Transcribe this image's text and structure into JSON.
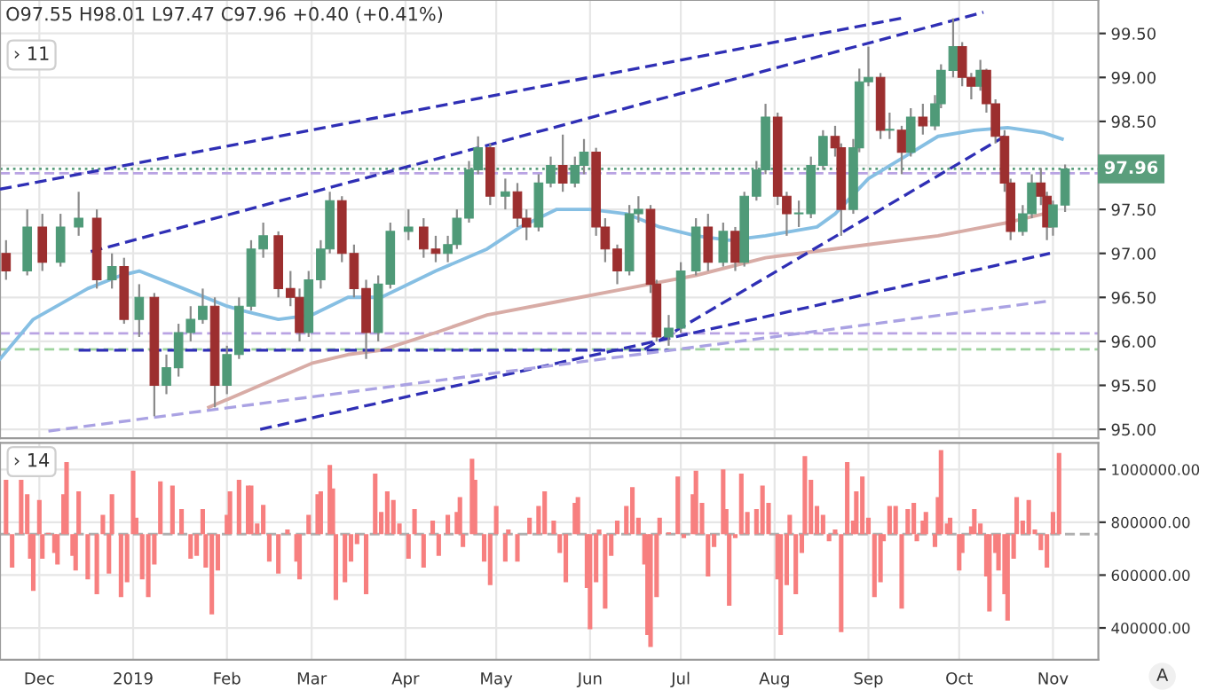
{
  "chart_data": [
    {
      "type": "candlestick",
      "annotations": [
        "O97.55 H98.01 L97.47 C97.96 +0.40 (+0.41%)",
        "› 11"
      ],
      "x": [
        "2018-11-20",
        "2018-11-27",
        "2018-12-02",
        "2018-12-08",
        "2018-12-14",
        "2018-12-20",
        "2018-12-25",
        "2018-12-29",
        "2019-01-03",
        "2019-01-08",
        "2019-01-12",
        "2019-01-16",
        "2019-01-20",
        "2019-01-24",
        "2019-01-28",
        "2019-02-01",
        "2019-02-05",
        "2019-02-09",
        "2019-02-13",
        "2019-02-18",
        "2019-02-22",
        "2019-02-25",
        "2019-02-28",
        "2019-03-04",
        "2019-03-07",
        "2019-03-11",
        "2019-03-15",
        "2019-03-19",
        "2019-03-23",
        "2019-03-27",
        "2019-04-02",
        "2019-04-07",
        "2019-04-11",
        "2019-04-15",
        "2019-04-18",
        "2019-04-22",
        "2019-04-25",
        "2019-04-29",
        "2019-05-04",
        "2019-05-08",
        "2019-05-11",
        "2019-05-15",
        "2019-05-19",
        "2019-05-23",
        "2019-05-27",
        "2019-05-30",
        "2019-06-03",
        "2019-06-06",
        "2019-06-10",
        "2019-06-14",
        "2019-06-17",
        "2019-06-21",
        "2019-06-23",
        "2019-06-27",
        "2019-07-01",
        "2019-07-06",
        "2019-07-10",
        "2019-07-15",
        "2019-07-19",
        "2019-07-22",
        "2019-07-26",
        "2019-07-29",
        "2019-08-02",
        "2019-08-05",
        "2019-08-09",
        "2019-08-13",
        "2019-08-17",
        "2019-08-21",
        "2019-08-23",
        "2019-08-27",
        "2019-08-29",
        "2019-09-01",
        "2019-09-05",
        "2019-09-08",
        "2019-09-12",
        "2019-09-15",
        "2019-09-19",
        "2019-09-23",
        "2019-09-25",
        "2019-09-29",
        "2019-10-02",
        "2019-10-05",
        "2019-10-08",
        "2019-10-10",
        "2019-10-13",
        "2019-10-16",
        "2019-10-18",
        "2019-10-22",
        "2019-10-25",
        "2019-10-28",
        "2019-10-30",
        "2019-11-01",
        "2019-11-05"
      ],
      "ohlc": [
        [
          97.0,
          97.15,
          96.7,
          96.8
        ],
        [
          96.8,
          97.5,
          96.75,
          97.3
        ],
        [
          97.3,
          97.45,
          96.8,
          96.9
        ],
        [
          96.9,
          97.45,
          96.85,
          97.3
        ],
        [
          97.3,
          97.7,
          97.2,
          97.4
        ],
        [
          97.4,
          97.5,
          96.6,
          96.7
        ],
        [
          96.7,
          97.0,
          96.6,
          96.85
        ],
        [
          96.85,
          96.95,
          96.2,
          96.25
        ],
        [
          96.25,
          96.65,
          96.05,
          96.5
        ],
        [
          96.5,
          96.55,
          95.15,
          95.5
        ],
        [
          95.5,
          95.85,
          95.4,
          95.7
        ],
        [
          95.7,
          96.2,
          95.6,
          96.1
        ],
        [
          96.1,
          96.4,
          96.0,
          96.25
        ],
        [
          96.25,
          96.6,
          96.2,
          96.4
        ],
        [
          96.4,
          96.5,
          95.25,
          95.5
        ],
        [
          95.5,
          95.95,
          95.4,
          95.85
        ],
        [
          95.85,
          96.5,
          95.8,
          96.4
        ],
        [
          96.4,
          97.15,
          96.35,
          97.05
        ],
        [
          97.05,
          97.35,
          96.95,
          97.2
        ],
        [
          97.2,
          97.25,
          96.5,
          96.6
        ],
        [
          96.6,
          96.8,
          96.4,
          96.5
        ],
        [
          96.5,
          96.6,
          96.0,
          96.1
        ],
        [
          96.1,
          96.8,
          96.05,
          96.7
        ],
        [
          96.7,
          97.15,
          96.6,
          97.05
        ],
        [
          97.05,
          97.7,
          97.0,
          97.6
        ],
        [
          97.6,
          97.65,
          96.9,
          97.0
        ],
        [
          97.0,
          97.1,
          96.5,
          96.6
        ],
        [
          96.6,
          96.7,
          95.8,
          96.1
        ],
        [
          96.1,
          96.75,
          96.0,
          96.65
        ],
        [
          96.65,
          97.35,
          96.6,
          97.25
        ],
        [
          97.25,
          97.5,
          97.15,
          97.3
        ],
        [
          97.3,
          97.4,
          96.95,
          97.05
        ],
        [
          97.05,
          97.2,
          96.9,
          97.0
        ],
        [
          97.0,
          97.2,
          96.9,
          97.1
        ],
        [
          97.1,
          97.5,
          97.05,
          97.4
        ],
        [
          97.4,
          98.05,
          97.35,
          97.95
        ],
        [
          97.95,
          98.33,
          97.9,
          98.2
        ],
        [
          98.2,
          98.25,
          97.55,
          97.65
        ],
        [
          97.65,
          97.85,
          97.5,
          97.7
        ],
        [
          97.7,
          97.8,
          97.3,
          97.4
        ],
        [
          97.4,
          97.5,
          97.15,
          97.3
        ],
        [
          97.3,
          97.9,
          97.25,
          97.8
        ],
        [
          97.8,
          98.1,
          97.75,
          98.0
        ],
        [
          98.0,
          98.35,
          97.7,
          97.8
        ],
        [
          97.8,
          98.1,
          97.75,
          98.0
        ],
        [
          98.0,
          98.3,
          97.9,
          98.15
        ],
        [
          98.15,
          98.2,
          97.2,
          97.3
        ],
        [
          97.3,
          97.4,
          96.9,
          97.05
        ],
        [
          97.05,
          97.1,
          96.65,
          96.8
        ],
        [
          96.8,
          97.55,
          96.75,
          97.45
        ],
        [
          97.45,
          97.65,
          97.35,
          97.5
        ],
        [
          97.5,
          97.55,
          96.55,
          96.65
        ],
        [
          96.65,
          96.7,
          96.0,
          96.05
        ],
        [
          96.05,
          96.3,
          95.95,
          96.15
        ],
        [
          96.15,
          96.9,
          96.1,
          96.8
        ],
        [
          96.8,
          97.4,
          96.75,
          97.3
        ],
        [
          97.3,
          97.45,
          96.8,
          96.9
        ],
        [
          96.9,
          97.35,
          96.85,
          97.25
        ],
        [
          97.25,
          97.3,
          96.8,
          96.9
        ],
        [
          96.9,
          97.7,
          96.85,
          97.65
        ],
        [
          97.65,
          98.05,
          97.6,
          97.95
        ],
        [
          97.95,
          98.7,
          97.9,
          98.55
        ],
        [
          98.55,
          98.6,
          97.55,
          97.65
        ],
        [
          97.65,
          97.7,
          97.2,
          97.45
        ],
        [
          97.45,
          97.6,
          97.3,
          97.45
        ],
        [
          97.45,
          98.1,
          97.4,
          98.0
        ],
        [
          98.0,
          98.4,
          97.95,
          98.33
        ],
        [
          98.33,
          98.45,
          98.1,
          98.2
        ],
        [
          98.2,
          98.25,
          97.2,
          97.5
        ],
        [
          97.5,
          98.3,
          97.45,
          98.2
        ],
        [
          98.2,
          99.1,
          98.15,
          98.95
        ],
        [
          98.95,
          99.35,
          98.9,
          99.0
        ],
        [
          99.0,
          99.05,
          98.3,
          98.4
        ],
        [
          98.4,
          98.6,
          98.3,
          98.4
        ],
        [
          98.4,
          98.45,
          97.9,
          98.15
        ],
        [
          98.15,
          98.65,
          98.1,
          98.55
        ],
        [
          98.55,
          98.7,
          98.35,
          98.45
        ],
        [
          98.45,
          98.8,
          98.4,
          98.7
        ],
        [
          98.7,
          99.15,
          98.65,
          99.08
        ],
        [
          99.08,
          99.67,
          99.0,
          99.35
        ],
        [
          99.35,
          99.4,
          98.9,
          99.0
        ],
        [
          99.0,
          99.05,
          98.75,
          98.9
        ],
        [
          98.9,
          99.2,
          98.85,
          99.08
        ],
        [
          99.08,
          99.1,
          98.6,
          98.7
        ],
        [
          98.7,
          98.75,
          98.25,
          98.33
        ],
        [
          98.33,
          98.4,
          97.7,
          97.8
        ],
        [
          97.8,
          97.85,
          97.15,
          97.25
        ],
        [
          97.25,
          97.55,
          97.2,
          97.45
        ],
        [
          97.45,
          97.9,
          97.4,
          97.8
        ],
        [
          97.8,
          97.97,
          97.55,
          97.65
        ],
        [
          97.65,
          97.7,
          97.15,
          97.3
        ],
        [
          97.3,
          97.6,
          97.2,
          97.55
        ],
        [
          97.55,
          98.01,
          97.47,
          97.96
        ]
      ],
      "colors": [
        "#9c2f2f",
        "#4f9a78",
        "#9c2f2f",
        "#4f9a78",
        "#4f9a78",
        "#9c2f2f",
        "#4f9a78",
        "#9c2f2f",
        "#4f9a78",
        "#9c2f2f",
        "#4f9a78",
        "#4f9a78",
        "#4f9a78",
        "#4f9a78",
        "#9c2f2f",
        "#4f9a78",
        "#4f9a78",
        "#4f9a78",
        "#4f9a78",
        "#9c2f2f",
        "#9c2f2f",
        "#9c2f2f",
        "#4f9a78",
        "#4f9a78",
        "#4f9a78",
        "#9c2f2f",
        "#9c2f2f",
        "#9c2f2f",
        "#4f9a78",
        "#4f9a78",
        "#4f9a78",
        "#9c2f2f",
        "#9c2f2f",
        "#4f9a78",
        "#4f9a78",
        "#4f9a78",
        "#4f9a78",
        "#9c2f2f",
        "#4f9a78",
        "#9c2f2f",
        "#9c2f2f",
        "#4f9a78",
        "#4f9a78",
        "#9c2f2f",
        "#4f9a78",
        "#4f9a78",
        "#9c2f2f",
        "#9c2f2f",
        "#9c2f2f",
        "#4f9a78",
        "#4f9a78",
        "#9c2f2f",
        "#9c2f2f",
        "#4f9a78",
        "#4f9a78",
        "#4f9a78",
        "#9c2f2f",
        "#4f9a78",
        "#9c2f2f",
        "#4f9a78",
        "#4f9a78",
        "#4f9a78",
        "#9c2f2f",
        "#9c2f2f",
        "#4f9a78",
        "#4f9a78",
        "#4f9a78",
        "#9c2f2f",
        "#9c2f2f",
        "#4f9a78",
        "#4f9a78",
        "#4f9a78",
        "#9c2f2f",
        "#4f9a78",
        "#9c2f2f",
        "#4f9a78",
        "#9c2f2f",
        "#4f9a78",
        "#4f9a78",
        "#4f9a78",
        "#9c2f2f",
        "#9c2f2f",
        "#4f9a78",
        "#9c2f2f",
        "#9c2f2f",
        "#9c2f2f",
        "#9c2f2f",
        "#4f9a78",
        "#4f9a78",
        "#9c2f2f",
        "#9c2f2f",
        "#4f9a78",
        "#4f9a78"
      ],
      "series": [
        {
          "type": "line",
          "color": "#86bfe3",
          "x": [
            "2018-11-18",
            "2018-11-29",
            "2018-12-17",
            "2018-12-28",
            "2019-01-03",
            "2019-01-14",
            "2019-02-01",
            "2019-02-06",
            "2019-02-18",
            "2019-03-01",
            "2019-03-13",
            "2019-03-24",
            "2019-04-11",
            "2019-04-28",
            "2019-05-09",
            "2019-05-21",
            "2019-06-01",
            "2019-06-13",
            "2019-06-24",
            "2019-07-06",
            "2019-07-17",
            "2019-07-29",
            "2019-08-15",
            "2019-08-21",
            "2019-09-01",
            "2019-09-13",
            "2019-09-24",
            "2019-10-06",
            "2019-10-17",
            "2019-10-29",
            "2019-11-04"
          ],
          "values": [
            95.8,
            96.25,
            96.6,
            96.75,
            96.8,
            96.65,
            96.4,
            96.35,
            96.25,
            96.3,
            96.5,
            96.5,
            96.8,
            97.05,
            97.3,
            97.5,
            97.5,
            97.45,
            97.3,
            97.2,
            97.15,
            97.2,
            97.3,
            97.45,
            97.85,
            98.1,
            98.33,
            98.4,
            98.43,
            98.37,
            98.3
          ]
        },
        {
          "type": "line",
          "color": "#d8aca6",
          "x": [
            "2019-01-26",
            "2019-02-12",
            "2019-03-01",
            "2019-03-13",
            "2019-03-24",
            "2019-04-11",
            "2019-04-28",
            "2019-05-21",
            "2019-06-13",
            "2019-07-06",
            "2019-07-29",
            "2019-08-09",
            "2019-09-01",
            "2019-09-24",
            "2019-10-17",
            "2019-10-29"
          ],
          "values": [
            95.25,
            95.5,
            95.75,
            95.85,
            95.9,
            96.1,
            96.3,
            96.45,
            96.6,
            96.75,
            96.95,
            97.0,
            97.1,
            97.2,
            97.35,
            97.45
          ]
        },
        {
          "type": "line",
          "color": "#2f2fb5",
          "line_style": "dashed",
          "x": [
            "2018-11-18",
            "2019-09-13"
          ],
          "values": [
            97.73,
            99.68
          ]
        },
        {
          "type": "line",
          "color": "#2f2fb5",
          "line_style": "dashed",
          "x": [
            "2018-12-18",
            "2019-10-09"
          ],
          "values": [
            97.02,
            99.74
          ]
        },
        {
          "type": "line",
          "color": "#2f2fb5",
          "line_style": "dashed",
          "x": [
            "2019-02-12",
            "2019-10-31"
          ],
          "values": [
            95.0,
            97.0
          ]
        },
        {
          "type": "line",
          "color": "#2f2fb5",
          "line_style": "dashed",
          "x": [
            "2018-12-14",
            "2019-06-27"
          ],
          "values": [
            95.9,
            95.9
          ]
        },
        {
          "type": "line",
          "color": "#2f2fb5",
          "line_style": "dashed",
          "x": [
            "2019-06-19",
            "2019-10-16"
          ],
          "values": [
            95.91,
            98.33
          ]
        },
        {
          "type": "line",
          "color": "#aaa2e3",
          "line_style": "dashed",
          "x": [
            "2018-12-04",
            "2019-10-31"
          ],
          "values": [
            94.98,
            96.46
          ]
        }
      ],
      "ref_lines": [
        {
          "axis": "y",
          "value": 97.96,
          "label": "97.96",
          "color": "#5a9e7c",
          "line_style": "dotted"
        },
        {
          "axis": "y",
          "value": 97.91,
          "color": "#b9a3e3",
          "line_style": "dashed"
        },
        {
          "axis": "y",
          "value": 96.09,
          "color": "#b9a3e3",
          "line_style": "dashed"
        },
        {
          "axis": "y",
          "value": 95.91,
          "color": "#9ed49e",
          "line_style": "dashed"
        }
      ],
      "xlim": [
        "2018-11-18",
        "2019-11-16"
      ],
      "xticks": [
        {
          "value": "2018-12-01",
          "label": null
        },
        {
          "value": "2019-01-01",
          "label": null
        },
        {
          "value": "2019-02-01",
          "label": null
        },
        {
          "value": "2019-03-01",
          "label": null
        },
        {
          "value": "2019-04-01",
          "label": null
        },
        {
          "value": "2019-05-01",
          "label": null
        },
        {
          "value": "2019-06-01",
          "label": null
        },
        {
          "value": "2019-07-01",
          "label": null
        },
        {
          "value": "2019-08-01",
          "label": null
        },
        {
          "value": "2019-09-01",
          "label": null
        },
        {
          "value": "2019-10-01",
          "label": null
        },
        {
          "value": "2019-11-01",
          "label": null
        }
      ],
      "ylim": [
        94.9,
        99.88
      ],
      "yticks": [
        {
          "value": 95,
          "label": "95.00"
        },
        {
          "value": 95.5,
          "label": "95.50"
        },
        {
          "value": 96,
          "label": "96.00"
        },
        {
          "value": 96.5,
          "label": "96.50"
        },
        {
          "value": 97,
          "label": "97.00"
        },
        {
          "value": 97.5,
          "label": "97.50"
        },
        {
          "value": 98,
          "label": null
        },
        {
          "value": 98.5,
          "label": "98.50"
        },
        {
          "value": 99,
          "label": "99.00"
        },
        {
          "value": 99.5,
          "label": "99.50"
        }
      ],
      "grid": true,
      "tick_labels": "y"
    },
    {
      "type": "bar",
      "color": "#f77f7f",
      "annotations": [
        "› 14",
        "A"
      ],
      "x": [
        "2018-11-20",
        "2018-11-22",
        "2018-11-25",
        "2018-11-27",
        "2018-11-28",
        "2018-11-29",
        "2018-12-01",
        "2018-12-02",
        "2018-12-04",
        "2018-12-06",
        "2018-12-07",
        "2018-12-09",
        "2018-12-10",
        "2018-12-12",
        "2018-12-13",
        "2018-12-14",
        "2018-12-17",
        "2018-12-20",
        "2018-12-22",
        "2018-12-24",
        "2018-12-25",
        "2018-12-28",
        "2018-12-30",
        "2019-01-01",
        "2019-01-02",
        "2019-01-04",
        "2019-01-06",
        "2019-01-08",
        "2019-01-10",
        "2019-01-14",
        "2019-01-17",
        "2019-01-20",
        "2019-01-22",
        "2019-01-24",
        "2019-01-25",
        "2019-01-27",
        "2019-01-29",
        "2019-02-01",
        "2019-02-02",
        "2019-02-05",
        "2019-02-08",
        "2019-02-09",
        "2019-02-11",
        "2019-02-13",
        "2019-02-15",
        "2019-02-18",
        "2019-02-21",
        "2019-02-24",
        "2019-02-25",
        "2019-02-28",
        "2019-03-03",
        "2019-03-04",
        "2019-03-07",
        "2019-03-08",
        "2019-03-09",
        "2019-03-12",
        "2019-03-14",
        "2019-03-16",
        "2019-03-19",
        "2019-03-22",
        "2019-03-24",
        "2019-03-26",
        "2019-03-28",
        "2019-03-30",
        "2019-04-02",
        "2019-04-04",
        "2019-04-07",
        "2019-04-10",
        "2019-04-12",
        "2019-04-15",
        "2019-04-18",
        "2019-04-19",
        "2019-04-20",
        "2019-04-23",
        "2019-04-24",
        "2019-04-27",
        "2019-04-29",
        "2019-05-01",
        "2019-05-04",
        "2019-05-05",
        "2019-05-08",
        "2019-05-12",
        "2019-05-15",
        "2019-05-17",
        "2019-05-20",
        "2019-05-22",
        "2019-05-24",
        "2019-05-27",
        "2019-05-28",
        "2019-05-31",
        "2019-06-01",
        "2019-06-03",
        "2019-06-04",
        "2019-06-06",
        "2019-06-08",
        "2019-06-10",
        "2019-06-13",
        "2019-06-15",
        "2019-06-17",
        "2019-06-19",
        "2019-06-20",
        "2019-06-21",
        "2019-06-23",
        "2019-06-24",
        "2019-06-27",
        "2019-06-30",
        "2019-07-02",
        "2019-07-05",
        "2019-07-06",
        "2019-07-08",
        "2019-07-10",
        "2019-07-12",
        "2019-07-15",
        "2019-07-16",
        "2019-07-17",
        "2019-07-19",
        "2019-07-21",
        "2019-07-23",
        "2019-07-26",
        "2019-07-28",
        "2019-07-30",
        "2019-08-02",
        "2019-08-03",
        "2019-08-05",
        "2019-08-06",
        "2019-08-08",
        "2019-08-10",
        "2019-08-11",
        "2019-08-13",
        "2019-08-15",
        "2019-08-17",
        "2019-08-19",
        "2019-08-21",
        "2019-08-23",
        "2019-08-25",
        "2019-08-27",
        "2019-08-28",
        "2019-08-30",
        "2019-09-01",
        "2019-09-03",
        "2019-09-05",
        "2019-09-06",
        "2019-09-08",
        "2019-09-10",
        "2019-09-12",
        "2019-09-14",
        "2019-09-16",
        "2019-09-17",
        "2019-09-19",
        "2019-09-20",
        "2019-09-23",
        "2019-09-24",
        "2019-09-25",
        "2019-09-27",
        "2019-09-28",
        "2019-10-01",
        "2019-10-02",
        "2019-10-05",
        "2019-10-06",
        "2019-10-08",
        "2019-10-10",
        "2019-10-11",
        "2019-10-13",
        "2019-10-14",
        "2019-10-16",
        "2019-10-17",
        "2019-10-19",
        "2019-10-20",
        "2019-10-22",
        "2019-10-24",
        "2019-10-26",
        "2019-10-28",
        "2019-10-30",
        "2019-11-01",
        "2019-11-03"
      ],
      "values": [
        206000,
        -127000,
        206000,
        151000,
        -93000,
        -215000,
        129000,
        -93000,
        5000,
        -71000,
        -115000,
        151000,
        273000,
        -82000,
        -138000,
        162000,
        -171000,
        -227000,
        73000,
        -149000,
        151000,
        -238000,
        -182000,
        240000,
        62000,
        -171000,
        -238000,
        -115000,
        200000,
        184000,
        95000,
        -93000,
        -82000,
        95000,
        -127000,
        -304000,
        -138000,
        73000,
        162000,
        206000,
        184000,
        184000,
        40000,
        111000,
        -104000,
        -149000,
        18000,
        -104000,
        -171000,
        73000,
        151000,
        162000,
        262000,
        173000,
        -249000,
        -182000,
        -104000,
        -38000,
        -227000,
        229000,
        84000,
        162000,
        129000,
        40000,
        -93000,
        95000,
        -127000,
        51000,
        -82000,
        73000,
        84000,
        140000,
        -49000,
        285000,
        206000,
        -104000,
        -193000,
        107000,
        -104000,
        18000,
        -104000,
        62000,
        107000,
        162000,
        51000,
        -71000,
        -182000,
        118000,
        140000,
        -204000,
        -360000,
        -182000,
        18000,
        -282000,
        -82000,
        51000,
        107000,
        178000,
        62000,
        -115000,
        -382000,
        -427000,
        -238000,
        62000,
        7000,
        218000,
        -15000,
        151000,
        240000,
        118000,
        -160000,
        -49000,
        245000,
        95000,
        -271000,
        -15000,
        229000,
        84000,
        95000,
        184000,
        118000,
        -171000,
        -382000,
        -193000,
        73000,
        -227000,
        -71000,
        295000,
        206000,
        107000,
        73000,
        -27000,
        18000,
        -371000,
        273000,
        51000,
        162000,
        218000,
        62000,
        -238000,
        -182000,
        -27000,
        107000,
        107000,
        -282000,
        95000,
        118000,
        -27000,
        51000,
        84000,
        -49000,
        140000,
        318000,
        40000,
        62000,
        -138000,
        -71000,
        29000,
        95000,
        40000,
        -160000,
        -293000,
        -71000,
        -138000,
        -227000,
        -327000,
        -93000,
        140000,
        51000,
        129000,
        18000,
        -60000,
        -127000,
        84000,
        307000
      ],
      "base": [
        755000,
        755000,
        755000,
        755000,
        755000,
        755000,
        755000,
        755000,
        755000,
        755000,
        755000,
        755000,
        755000,
        755000,
        755000,
        755000,
        755000,
        755000,
        755000,
        755000,
        755000,
        755000,
        755000,
        755000,
        755000,
        755000,
        755000,
        755000,
        755000,
        755000,
        755000,
        755000,
        755000,
        755000,
        755000,
        755000,
        755000,
        755000,
        755000,
        755000,
        755000,
        755000,
        755000,
        755000,
        755000,
        755000,
        755000,
        755000,
        755000,
        755000,
        755000,
        755000,
        755000,
        755000,
        755000,
        755000,
        755000,
        755000,
        755000,
        755000,
        755000,
        755000,
        755000,
        755000,
        755000,
        755000,
        755000,
        755000,
        755000,
        755000,
        755000,
        755000,
        755000,
        755000,
        755000,
        755000,
        755000,
        755000,
        755000,
        755000,
        755000,
        755000,
        755000,
        755000,
        755000,
        755000,
        755000,
        755000,
        755000,
        755000,
        755000,
        755000,
        755000,
        755000,
        755000,
        755000,
        755000,
        755000,
        755000,
        755000,
        755000,
        755000,
        755000,
        755000,
        755000,
        755000,
        755000,
        755000,
        755000,
        755000,
        755000,
        755000,
        755000,
        755000,
        755000,
        755000,
        755000,
        755000,
        755000,
        755000,
        755000,
        755000,
        755000,
        755000,
        755000,
        755000,
        755000,
        755000,
        755000,
        755000,
        755000,
        755000,
        755000,
        755000,
        755000,
        755000,
        755000,
        755000,
        755000,
        755000,
        755000,
        755000,
        755000,
        755000,
        755000,
        755000,
        755000,
        755000,
        755000,
        755000,
        755000,
        755000,
        755000,
        755000,
        755000,
        755000,
        755000,
        755000,
        755000,
        755000,
        755000,
        755000,
        755000,
        755000,
        755000,
        755000,
        755000,
        755000,
        755000,
        755000,
        755000,
        755000,
        755000,
        755000,
        755000
      ],
      "ref_lines": [
        {
          "axis": "y",
          "value": 755000,
          "color": "#b0b0b0",
          "line_style": "dashed"
        }
      ],
      "xlim": [
        "2018-11-18",
        "2019-11-16"
      ],
      "xticks": [
        {
          "value": "2018-12-01",
          "label": "Dec"
        },
        {
          "value": "2019-01-01",
          "label": "2019"
        },
        {
          "value": "2019-02-01",
          "label": "Feb"
        },
        {
          "value": "2019-03-01",
          "label": "Mar"
        },
        {
          "value": "2019-04-01",
          "label": "Apr"
        },
        {
          "value": "2019-05-01",
          "label": "May"
        },
        {
          "value": "2019-06-01",
          "label": "Jun"
        },
        {
          "value": "2019-07-01",
          "label": "Jul"
        },
        {
          "value": "2019-08-01",
          "label": "Aug"
        },
        {
          "value": "2019-09-01",
          "label": "Sep"
        },
        {
          "value": "2019-10-01",
          "label": "Oct"
        },
        {
          "value": "2019-11-01",
          "label": "Nov"
        }
      ],
      "ylim": [
        280000,
        1100000
      ],
      "yticks": [
        {
          "value": 400000,
          "label": "400000.00"
        },
        {
          "value": 600000,
          "label": "600000.00"
        },
        {
          "value": 800000,
          "label": "800000.00"
        },
        {
          "value": 1000000,
          "label": "1000000.00"
        }
      ],
      "grid": true
    }
  ]
}
